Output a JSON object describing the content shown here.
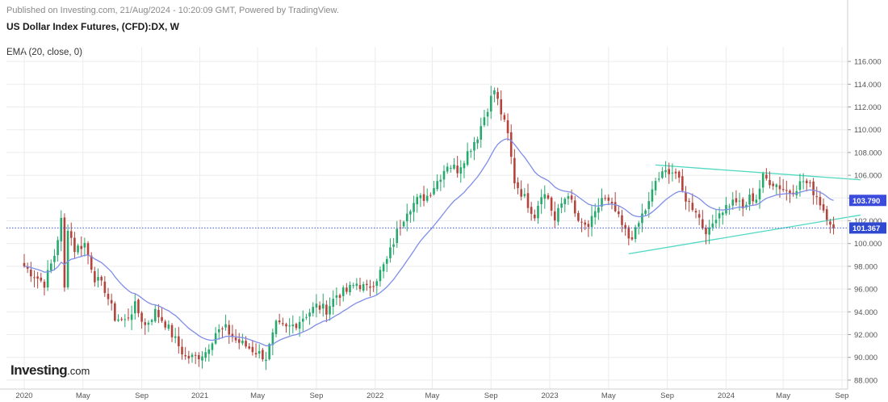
{
  "header": {
    "published": "Published on Investing.com, 21/Aug/2024 - 10:20:09 GMT, Powered by TradingView.",
    "title": "US Dollar Index Futures, (CFD):DX, W",
    "indicator": "EMA (20, close, 0)"
  },
  "logo": {
    "main": "Investing",
    "suffix": ".com"
  },
  "colors": {
    "up": "#26a96c",
    "down": "#b3433b",
    "ema": "#7f8ee8",
    "trendline": "#4fd8c0",
    "price_line": "#3b5bdb",
    "grid": "#ececec",
    "ema_badge": "#3b4bdb",
    "price_badge": "#2f49d1"
  },
  "chart_data": {
    "type": "candlestick",
    "y_ticks": [
      "88.000",
      "90.000",
      "92.000",
      "94.000",
      "96.000",
      "98.000",
      "100.000",
      "102.000",
      "104.000",
      "106.000",
      "108.000",
      "110.000",
      "112.000",
      "114.000",
      "116.000"
    ],
    "ylim": [
      87.5,
      117.5
    ],
    "x_ticks": [
      {
        "label": "2020",
        "t": 0.0
      },
      {
        "label": "May",
        "t": 17.5
      },
      {
        "label": "Sep",
        "t": 35
      },
      {
        "label": "2021",
        "t": 52.3
      },
      {
        "label": "May",
        "t": 69.5
      },
      {
        "label": "Sep",
        "t": 87
      },
      {
        "label": "2022",
        "t": 104.5
      },
      {
        "label": "May",
        "t": 121.5
      },
      {
        "label": "Sep",
        "t": 139
      },
      {
        "label": "2023",
        "t": 156.5
      },
      {
        "label": "May",
        "t": 174
      },
      {
        "label": "Sep",
        "t": 191.5
      },
      {
        "label": "2024",
        "t": 209
      },
      {
        "label": "May",
        "t": 226
      },
      {
        "label": "Sep",
        "t": 243.5
      }
    ],
    "anchors": [
      [
        0,
        98.0
      ],
      [
        3,
        97.2
      ],
      [
        6,
        96.5
      ],
      [
        9,
        99.0
      ],
      [
        11,
        102.0
      ],
      [
        12,
        96.0
      ],
      [
        13,
        101.5
      ],
      [
        15,
        99.5
      ],
      [
        18,
        100.0
      ],
      [
        21,
        97.0
      ],
      [
        24,
        96.0
      ],
      [
        27,
        93.5
      ],
      [
        30,
        93.2
      ],
      [
        33,
        94.5
      ],
      [
        36,
        92.8
      ],
      [
        39,
        94.0
      ],
      [
        42,
        93.0
      ],
      [
        45,
        91.5
      ],
      [
        48,
        90.0
      ],
      [
        51,
        90.0
      ],
      [
        54,
        90.5
      ],
      [
        57,
        92.2
      ],
      [
        60,
        92.5
      ],
      [
        63,
        91.5
      ],
      [
        66,
        91.0
      ],
      [
        69,
        90.5
      ],
      [
        72,
        90.0
      ],
      [
        75,
        92.8
      ],
      [
        78,
        92.5
      ],
      [
        81,
        93.0
      ],
      [
        84,
        93.8
      ],
      [
        87,
        94.5
      ],
      [
        90,
        94.2
      ],
      [
        93,
        95.5
      ],
      [
        96,
        95.8
      ],
      [
        99,
        96.5
      ],
      [
        102,
        96.0
      ],
      [
        105,
        97.0
      ],
      [
        108,
        98.5
      ],
      [
        111,
        101.0
      ],
      [
        114,
        103.0
      ],
      [
        117,
        103.8
      ],
      [
        120,
        104.2
      ],
      [
        123,
        105.5
      ],
      [
        126,
        107.0
      ],
      [
        129,
        106.5
      ],
      [
        132,
        108.0
      ],
      [
        135,
        109.5
      ],
      [
        138,
        112.0
      ],
      [
        140,
        113.5
      ],
      [
        142,
        111.5
      ],
      [
        144,
        109.5
      ],
      [
        146,
        105.5
      ],
      [
        148,
        104.5
      ],
      [
        150,
        103.5
      ],
      [
        152,
        102.5
      ],
      [
        154,
        104.5
      ],
      [
        156,
        104.0
      ],
      [
        158,
        102.0
      ],
      [
        160,
        103.5
      ],
      [
        162,
        104.5
      ],
      [
        164,
        102.5
      ],
      [
        166,
        101.5
      ],
      [
        168,
        101.5
      ],
      [
        170,
        102.5
      ],
      [
        172,
        104.0
      ],
      [
        174,
        103.5
      ],
      [
        176,
        102.8
      ],
      [
        178,
        101.5
      ],
      [
        180,
        100.5
      ],
      [
        182,
        101.0
      ],
      [
        184,
        102.5
      ],
      [
        186,
        103.5
      ],
      [
        188,
        105.5
      ],
      [
        190,
        106.0
      ],
      [
        192,
        106.5
      ],
      [
        194,
        106.2
      ],
      [
        196,
        104.5
      ],
      [
        198,
        103.5
      ],
      [
        200,
        103.0
      ],
      [
        202,
        101.5
      ],
      [
        204,
        101.0
      ],
      [
        206,
        102.5
      ],
      [
        208,
        103.0
      ],
      [
        210,
        103.5
      ],
      [
        212,
        103.8
      ],
      [
        214,
        103.0
      ],
      [
        216,
        104.0
      ],
      [
        218,
        104.0
      ],
      [
        220,
        105.8
      ],
      [
        222,
        105.5
      ],
      [
        224,
        105.2
      ],
      [
        226,
        104.8
      ],
      [
        228,
        104.5
      ],
      [
        230,
        105.0
      ],
      [
        232,
        105.5
      ],
      [
        234,
        105.0
      ],
      [
        236,
        104.2
      ],
      [
        238,
        103.0
      ],
      [
        240,
        102.0
      ],
      [
        241,
        101.4
      ]
    ],
    "last_week_index": 241,
    "ema_label": "103.790",
    "ema_value": 103.79,
    "price_label": "101.367",
    "price_value": 101.367,
    "trendlines": [
      {
        "from": [
          188,
          106.9
        ],
        "to": [
          249,
          105.6
        ]
      },
      {
        "from": [
          180,
          99.1
        ],
        "to": [
          249,
          102.5
        ]
      }
    ]
  }
}
